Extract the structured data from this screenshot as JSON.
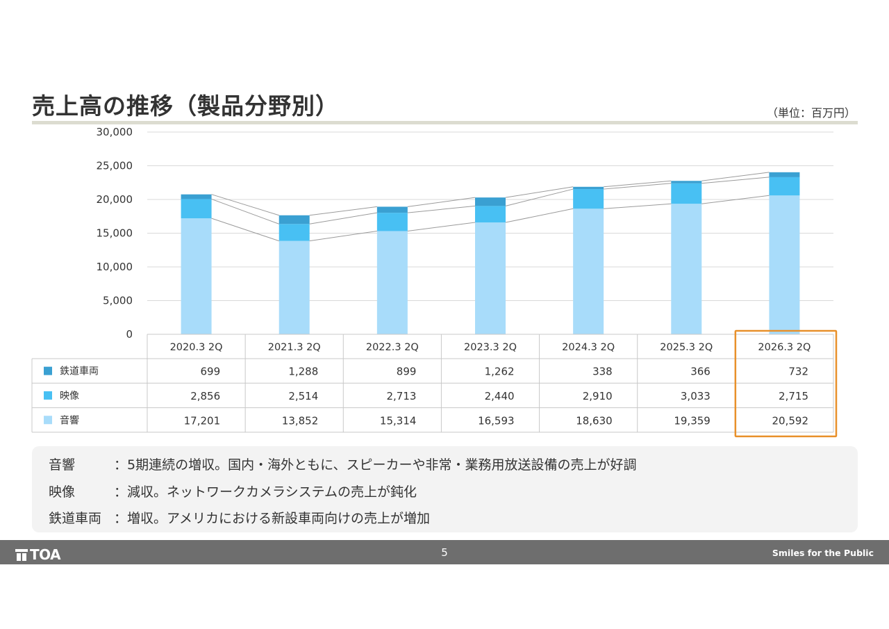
{
  "page": {
    "title": "売上高の推移（製品分野別）",
    "unit": "（単位：百万円）",
    "page_number": "5"
  },
  "chart_data": {
    "type": "bar",
    "stacked": true,
    "categories": [
      "2020.3 2Q",
      "2021.3 2Q",
      "2022.3 2Q",
      "2023.3 2Q",
      "2024.3 2Q",
      "2025.3 2Q",
      "2026.3 2Q"
    ],
    "series": [
      {
        "name": "鉄道車両",
        "values": [
          699,
          1288,
          899,
          1262,
          338,
          366,
          732
        ],
        "display": [
          "699",
          "1,288",
          "899",
          "1,262",
          "338",
          "366",
          "732"
        ],
        "color": "#3aa0d2"
      },
      {
        "name": "映像",
        "values": [
          2856,
          2514,
          2713,
          2440,
          2910,
          3033,
          2715
        ],
        "display": [
          "2,856",
          "2,514",
          "2,713",
          "2,440",
          "2,910",
          "3,033",
          "2,715"
        ],
        "color": "#48c0f3"
      },
      {
        "name": "音響",
        "values": [
          17201,
          13852,
          15314,
          16593,
          18630,
          19359,
          20592
        ],
        "display": [
          "17,201",
          "13,852",
          "15,314",
          "16,593",
          "18,630",
          "19,359",
          "20,592"
        ],
        "color": "#a8dcfa"
      }
    ],
    "stack_order_bottom_to_top": [
      "音響",
      "映像",
      "鉄道車両"
    ],
    "ylim": [
      0,
      30000
    ],
    "yticks": [
      "0",
      "5,000",
      "10,000",
      "15,000",
      "20,000",
      "25,000",
      "30,000"
    ],
    "ytick_values": [
      0,
      5000,
      10000,
      15000,
      20000,
      25000,
      30000
    ],
    "grid": true,
    "data_table": true,
    "series_lines": true,
    "highlight_category": "2026.3 2Q",
    "highlight_color": "#e8902a"
  },
  "commentary": [
    {
      "label": "音響",
      "text": "：5期連続の増収。国内・海外ともに、スピーカーや非常・業務用放送設備の売上が好調"
    },
    {
      "label": "映像",
      "text": "：減収。ネットワークカメラシステムの売上が鈍化"
    },
    {
      "label": "鉄道車両",
      "text": "：増収。アメリカにおける新設車両向けの売上が増加"
    }
  ],
  "footer": {
    "logo": "TOA",
    "tagline": "Smiles for the Public",
    "background": "#6e6e6e"
  }
}
